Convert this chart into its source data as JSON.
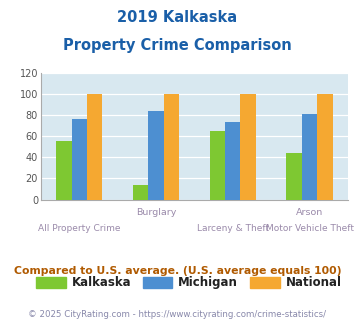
{
  "title_line1": "2019 Kalkaska",
  "title_line2": "Property Crime Comparison",
  "series": {
    "Kalkaska": [
      55,
      14,
      65,
      44
    ],
    "Michigan": [
      76,
      84,
      73,
      81
    ],
    "National": [
      100,
      100,
      100,
      100
    ]
  },
  "colors": {
    "Kalkaska": "#7ec832",
    "Michigan": "#4d8fd1",
    "National": "#f5a831"
  },
  "group_centers": [
    0.5,
    1.5,
    2.5,
    3.5
  ],
  "top_labels": [
    "",
    "Burglary",
    "",
    "Arson"
  ],
  "bottom_labels": [
    "All Property Crime",
    "",
    "Larceny & Theft",
    "Motor Vehicle Theft"
  ],
  "ylim": [
    0,
    120
  ],
  "yticks": [
    0,
    20,
    40,
    60,
    80,
    100,
    120
  ],
  "plot_bg": "#d8e8f0",
  "title_color": "#1a5fa8",
  "legend_text_color": "#222222",
  "top_label_color": "#9a8aaa",
  "bottom_label_color": "#9a8aaa",
  "footnote": "Compared to U.S. average. (U.S. average equals 100)",
  "copyright": "© 2025 CityRating.com - https://www.cityrating.com/crime-statistics/",
  "footnote_color": "#b05a00",
  "copyright_color": "#8888aa"
}
